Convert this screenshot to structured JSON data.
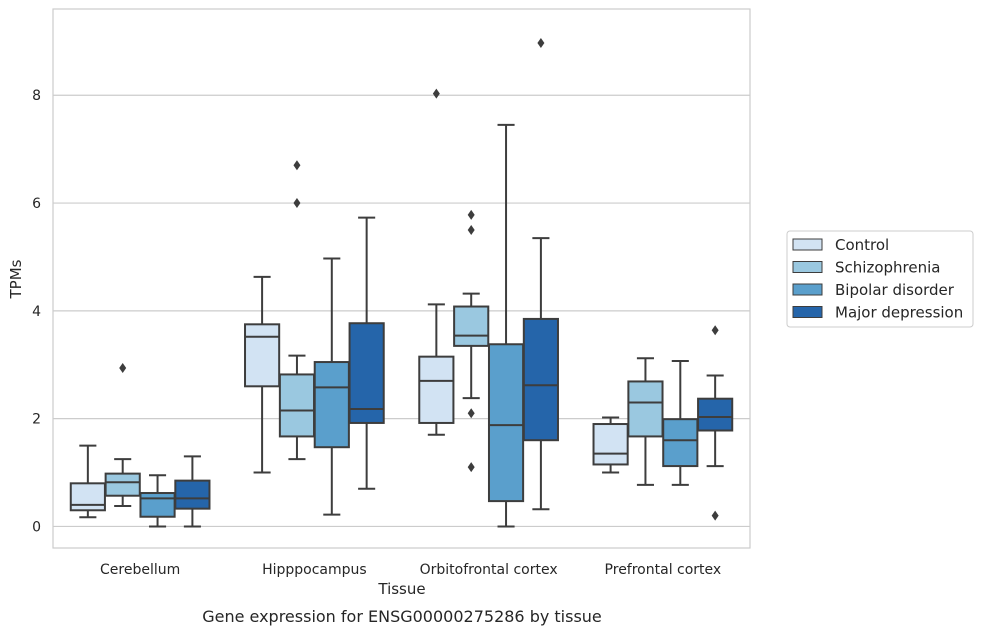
{
  "chart_data": {
    "type": "boxplot",
    "caption": "Gene expression for ENSG00000275286 by tissue",
    "xlabel": "Tissue",
    "ylabel": "TPMs",
    "ylim": [
      -0.4,
      9.6
    ],
    "yticks": [
      0,
      2,
      4,
      6,
      8
    ],
    "grid": "horizontal",
    "legend_position": "right",
    "categories": [
      "Cerebellum",
      "Hipppocampus",
      "Orbitofrontal cortex",
      "Prefrontal cortex"
    ],
    "series": [
      {
        "name": "Control",
        "color": "#d2e3f3",
        "boxes": [
          {
            "whisker_low": 0.17,
            "q1": 0.3,
            "median": 0.4,
            "q3": 0.8,
            "whisker_high": 1.5,
            "outliers": []
          },
          {
            "whisker_low": 1.0,
            "q1": 2.6,
            "median": 3.52,
            "q3": 3.75,
            "whisker_high": 4.63,
            "outliers": []
          },
          {
            "whisker_low": 1.7,
            "q1": 1.92,
            "median": 2.7,
            "q3": 3.15,
            "whisker_high": 4.12,
            "outliers": [
              8.03
            ]
          },
          {
            "whisker_low": 1.0,
            "q1": 1.15,
            "median": 1.35,
            "q3": 1.9,
            "whisker_high": 2.02,
            "outliers": []
          }
        ]
      },
      {
        "name": "Schizophrenia",
        "color": "#9ac8e0",
        "boxes": [
          {
            "whisker_low": 0.38,
            "q1": 0.57,
            "median": 0.82,
            "q3": 0.98,
            "whisker_high": 1.25,
            "outliers": [
              2.94
            ]
          },
          {
            "whisker_low": 1.25,
            "q1": 1.67,
            "median": 2.15,
            "q3": 2.82,
            "whisker_high": 3.17,
            "outliers": [
              6.0,
              6.7
            ]
          },
          {
            "whisker_low": 2.38,
            "q1": 3.35,
            "median": 3.54,
            "q3": 4.08,
            "whisker_high": 4.32,
            "outliers": [
              2.1,
              1.1,
              5.5,
              5.78
            ]
          },
          {
            "whisker_low": 0.77,
            "q1": 1.67,
            "median": 2.3,
            "q3": 2.69,
            "whisker_high": 3.12,
            "outliers": []
          }
        ]
      },
      {
        "name": "Bipolar disorder",
        "color": "#5a9fcc",
        "boxes": [
          {
            "whisker_low": 0.0,
            "q1": 0.18,
            "median": 0.52,
            "q3": 0.62,
            "whisker_high": 0.95,
            "outliers": []
          },
          {
            "whisker_low": 0.22,
            "q1": 1.47,
            "median": 2.58,
            "q3": 3.05,
            "whisker_high": 4.97,
            "outliers": []
          },
          {
            "whisker_low": 0.0,
            "q1": 0.47,
            "median": 1.88,
            "q3": 3.38,
            "whisker_high": 7.45,
            "outliers": []
          },
          {
            "whisker_low": 0.77,
            "q1": 1.12,
            "median": 1.6,
            "q3": 1.99,
            "whisker_high": 3.07,
            "outliers": []
          }
        ]
      },
      {
        "name": "Major depression",
        "color": "#2565aa",
        "boxes": [
          {
            "whisker_low": 0.0,
            "q1": 0.33,
            "median": 0.52,
            "q3": 0.85,
            "whisker_high": 1.3,
            "outliers": []
          },
          {
            "whisker_low": 0.7,
            "q1": 1.92,
            "median": 2.18,
            "q3": 3.77,
            "whisker_high": 5.73,
            "outliers": []
          },
          {
            "whisker_low": 0.32,
            "q1": 1.6,
            "median": 2.62,
            "q3": 3.85,
            "whisker_high": 5.35,
            "outliers": [
              8.97
            ]
          },
          {
            "whisker_low": 1.12,
            "q1": 1.78,
            "median": 2.03,
            "q3": 2.37,
            "whisker_high": 2.8,
            "outliers": [
              3.64,
              0.2
            ]
          }
        ]
      }
    ]
  }
}
